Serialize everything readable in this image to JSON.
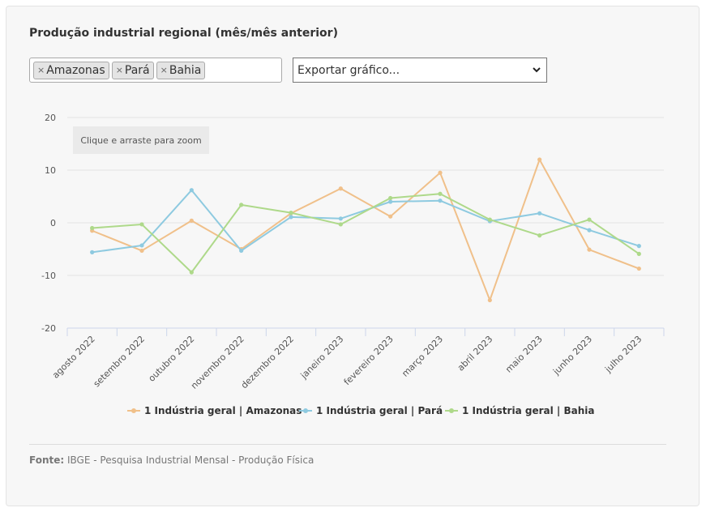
{
  "title": "Produção industrial regional (mês/mês anterior)",
  "filters": {
    "tags": [
      "Amazonas",
      "Pará",
      "Bahia"
    ],
    "remove_glyph": "×"
  },
  "export": {
    "label": "Exportar gráfico..."
  },
  "zoom_hint": "Clique e arraste para zoom",
  "source": {
    "label": "Fonte:",
    "text": "IBGE - Pesquisa Industrial Mensal - Produção Física"
  },
  "chart_data": {
    "type": "line",
    "categories": [
      "agosto 2022",
      "setembro 2022",
      "outubro 2022",
      "novembro 2022",
      "dezembro 2022",
      "janeiro 2023",
      "fevereiro 2023",
      "março 2023",
      "abril 2023",
      "maio 2023",
      "junho 2023",
      "julho 2023"
    ],
    "ylim": [
      -20,
      20
    ],
    "yticks": [
      -20,
      -10,
      0,
      10,
      20
    ],
    "grid": true,
    "legend": "bottom",
    "series": [
      {
        "name": "1 Indústria geral | Amazonas",
        "color": "#f0c08a",
        "values": [
          -1.5,
          -5.3,
          0.4,
          -5.0,
          1.8,
          6.5,
          1.2,
          9.5,
          -14.7,
          12.0,
          -5.1,
          -8.7
        ]
      },
      {
        "name": "1 Indústria geral | Pará",
        "color": "#8ecae0",
        "values": [
          -5.6,
          -4.3,
          6.2,
          -5.3,
          1.1,
          0.8,
          4.0,
          4.2,
          0.3,
          1.8,
          -1.4,
          -4.4
        ]
      },
      {
        "name": "1 Indústria geral | Bahia",
        "color": "#aed98a",
        "values": [
          -1.0,
          -0.3,
          -9.4,
          3.4,
          1.9,
          -0.3,
          4.7,
          5.5,
          0.6,
          -2.4,
          0.6,
          -5.9
        ]
      }
    ]
  }
}
